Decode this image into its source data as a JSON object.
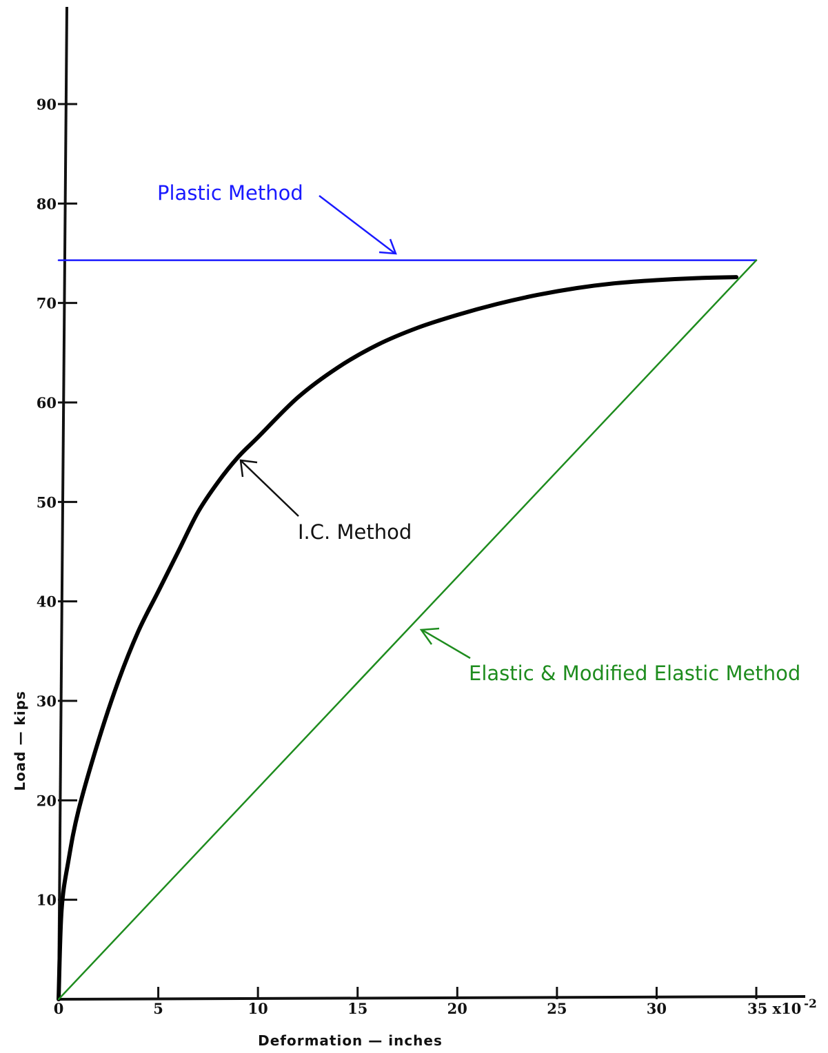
{
  "chart_data": {
    "type": "line",
    "title": "",
    "xlabel": "Deformation — inches",
    "ylabel": "Load — kips",
    "x_scale_label": "35 x10",
    "x_scale_exponent": "-2",
    "xlim": [
      0,
      36
    ],
    "ylim": [
      0,
      99
    ],
    "x_ticks": [
      0,
      5,
      10,
      15,
      20,
      25,
      30,
      35
    ],
    "x_tick_labels": [
      "0",
      "5",
      "10",
      "15",
      "20",
      "25",
      "30"
    ],
    "y_ticks": [
      10,
      20,
      30,
      40,
      50,
      60,
      70,
      80,
      90
    ],
    "y_tick_labels": [
      "10",
      "20",
      "30",
      "40",
      "50",
      "60",
      "70",
      "80",
      "90"
    ],
    "grid": false,
    "series": [
      {
        "name": "Plastic Method",
        "color": "#1a1aff",
        "x": [
          0,
          35
        ],
        "y": [
          74.3,
          74.3
        ]
      },
      {
        "name": "I.C. Method",
        "color": "#000000",
        "x": [
          0,
          0.15,
          0.5,
          1,
          2,
          3,
          4,
          5,
          6,
          7,
          8,
          9,
          10,
          12,
          14,
          16,
          18,
          20,
          22,
          24,
          26,
          28,
          30,
          32,
          34
        ],
        "y": [
          0,
          9,
          14,
          19,
          26,
          32,
          37,
          41,
          45,
          49,
          52,
          54.5,
          56.5,
          60.5,
          63.5,
          65.8,
          67.5,
          68.8,
          69.9,
          70.8,
          71.5,
          72,
          72.3,
          72.5,
          72.6
        ]
      },
      {
        "name": "Elastic & Modified Elastic Method",
        "color": "#1e8c1e",
        "x": [
          0,
          35
        ],
        "y": [
          0,
          74.3
        ]
      }
    ],
    "annotations": [
      {
        "text": "Plastic Method",
        "color": "#1a1aff",
        "points_to": [
          17,
          74.3
        ]
      },
      {
        "text": "I.C. Method",
        "color": "#000000",
        "points_to": [
          9.2,
          54.3
        ]
      },
      {
        "text": "Elastic & Modified Elastic Method",
        "color": "#1e8c1e",
        "points_to": [
          18.3,
          37.4
        ]
      }
    ]
  }
}
